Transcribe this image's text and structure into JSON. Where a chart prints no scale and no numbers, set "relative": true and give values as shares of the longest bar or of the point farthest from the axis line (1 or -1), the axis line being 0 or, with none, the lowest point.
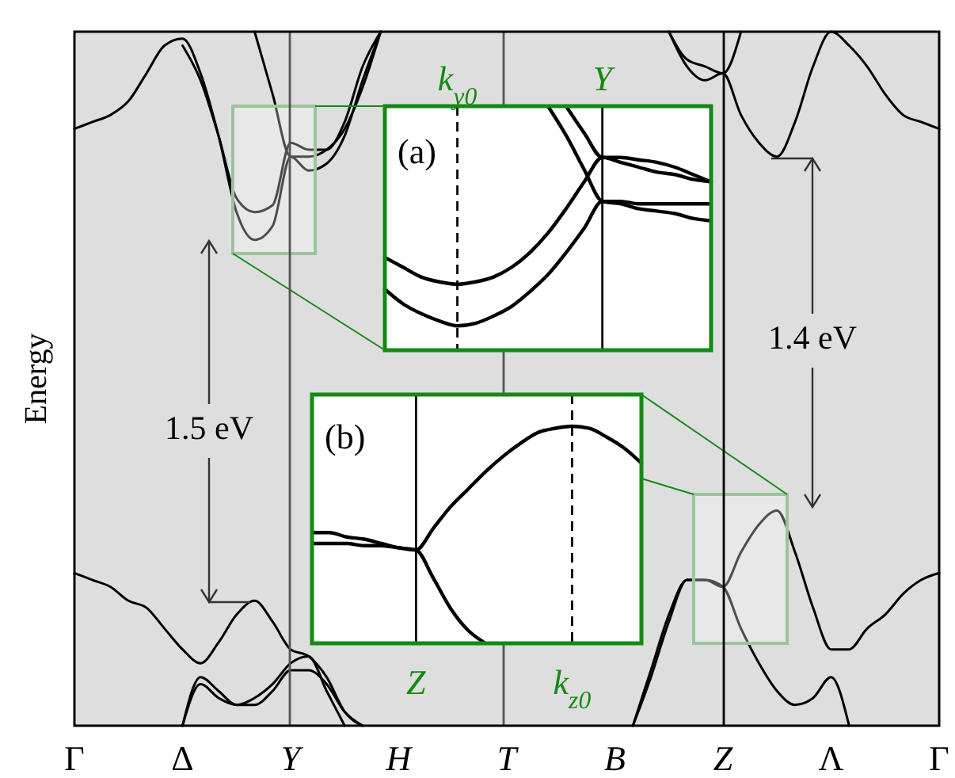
{
  "chart_data": [
    {
      "type": "line",
      "ylabel": "Energy",
      "relative": true,
      "tick_labels": "x",
      "categories": [
        "Γ",
        null,
        null,
        null,
        null,
        null,
        "Δ",
        null,
        null,
        null,
        null,
        null,
        "Y",
        null,
        null,
        null,
        null,
        null,
        "H",
        null,
        null,
        null,
        null,
        null,
        "T",
        null,
        null,
        null,
        null,
        null,
        "B",
        null,
        null,
        null,
        null,
        null,
        "Z",
        null,
        null,
        null,
        null,
        null,
        "Λ",
        null,
        null,
        null,
        null,
        null,
        "Γ"
      ],
      "annotations": [
        "1.5 eV",
        "1.4 eV"
      ],
      "series": [
        {
          "color": "#000000",
          "values": [
            0.86,
            0.87,
            0.88,
            0.9,
            0.94,
            0.98,
            0.99,
            0.94,
            0.85,
            0.74,
            0.7,
            0.72,
            0.82,
            0.8,
            0.81,
            0.85,
            0.93,
            1.0,
            null,
            null,
            null,
            null,
            null,
            null,
            null,
            null,
            null,
            null,
            null,
            null,
            null,
            null,
            null,
            null,
            null,
            null,
            null,
            null,
            null,
            null,
            null,
            null,
            null,
            null,
            null,
            null,
            null,
            null,
            null
          ]
        },
        {
          "color": "#000000",
          "values": [
            null,
            null,
            null,
            null,
            null,
            null,
            0.98,
            0.93,
            0.85,
            0.76,
            0.74,
            0.75,
            0.84,
            0.83,
            0.83,
            0.87,
            0.95,
            1.0,
            null,
            null,
            null,
            null,
            null,
            null,
            null,
            null,
            null,
            null,
            null,
            null,
            null,
            null,
            null,
            null,
            null,
            null,
            null,
            null,
            null,
            null,
            null,
            null,
            null,
            null,
            null,
            null,
            null,
            null,
            null
          ]
        },
        {
          "color": "#000000",
          "values": [
            null,
            null,
            null,
            null,
            null,
            null,
            null,
            null,
            null,
            null,
            1.0,
            0.91,
            0.82,
            0.82,
            0.83,
            0.86,
            0.92,
            1.0,
            null,
            null,
            null,
            null,
            null,
            null,
            null,
            null,
            null,
            null,
            null,
            null,
            null,
            null,
            null,
            null,
            null,
            null,
            null,
            null,
            null,
            null,
            null,
            null,
            null,
            null,
            null,
            null,
            null,
            null,
            null
          ]
        },
        {
          "color": "#000000",
          "values": [
            null,
            null,
            null,
            null,
            null,
            null,
            null,
            null,
            null,
            null,
            null,
            null,
            null,
            null,
            null,
            null,
            null,
            null,
            null,
            null,
            null,
            null,
            null,
            null,
            null,
            null,
            null,
            null,
            null,
            null,
            null,
            null,
            null,
            1.0,
            0.96,
            0.95,
            0.94,
            1.0,
            null,
            null,
            null,
            null,
            null,
            null,
            null,
            null,
            null,
            null,
            null
          ]
        },
        {
          "color": "#000000",
          "values": [
            null,
            null,
            null,
            null,
            null,
            null,
            null,
            null,
            null,
            null,
            null,
            null,
            null,
            null,
            null,
            null,
            null,
            null,
            null,
            null,
            null,
            null,
            null,
            null,
            null,
            null,
            null,
            null,
            null,
            null,
            null,
            null,
            null,
            1.0,
            0.95,
            0.93,
            0.94,
            0.88,
            0.84,
            0.82,
            0.87,
            0.95,
            1.0,
            0.98,
            0.95,
            0.91,
            0.88,
            0.87,
            0.86
          ]
        },
        {
          "color": "#000000",
          "values": [
            0.22,
            0.21,
            0.2,
            0.18,
            0.17,
            0.14,
            0.11,
            0.09,
            0.12,
            0.16,
            0.18,
            0.15,
            0.11,
            0.1,
            0.07,
            0.02,
            0,
            null,
            null,
            null,
            null,
            null,
            null,
            null,
            null,
            null,
            null,
            null,
            null,
            null,
            null,
            null,
            null,
            null,
            null,
            null,
            null,
            null,
            null,
            null,
            null,
            null,
            null,
            null,
            null,
            null,
            null,
            null,
            null
          ]
        },
        {
          "color": "#000000",
          "values": [
            null,
            null,
            null,
            null,
            null,
            null,
            0,
            0.07,
            0.05,
            0.03,
            0.04,
            0.06,
            0.09,
            0.1,
            0.05,
            0,
            null,
            null,
            null,
            null,
            null,
            null,
            null,
            null,
            null,
            null,
            null,
            null,
            null,
            null,
            null,
            null,
            null,
            null,
            null,
            null,
            null,
            null,
            null,
            null,
            null,
            null,
            null,
            null,
            null,
            null,
            null,
            null,
            null
          ]
        },
        {
          "color": "#000000",
          "values": [
            null,
            null,
            null,
            null,
            null,
            null,
            0,
            0.06,
            0.04,
            0.03,
            0.03,
            0.05,
            0.08,
            0.08,
            0.06,
            0.02,
            0,
            null,
            null,
            null,
            null,
            null,
            null,
            null,
            null,
            null,
            null,
            null,
            null,
            null,
            null,
            null,
            null,
            null,
            null,
            null,
            null,
            null,
            null,
            null,
            null,
            null,
            null,
            null,
            null,
            null,
            null,
            null,
            null
          ]
        },
        {
          "color": "#000000",
          "values": [
            null,
            null,
            null,
            null,
            null,
            null,
            null,
            null,
            null,
            null,
            null,
            null,
            null,
            null,
            null,
            null,
            null,
            null,
            null,
            null,
            null,
            null,
            null,
            null,
            null,
            null,
            null,
            null,
            null,
            null,
            null,
            0,
            0.08,
            0.16,
            0.21,
            0.21,
            0.2,
            0.25,
            0.29,
            0.31,
            0.25,
            0.17,
            0.11,
            0.11,
            0.14,
            0.16,
            0.19,
            0.21,
            0.22
          ]
        },
        {
          "color": "#000000",
          "values": [
            null,
            null,
            null,
            null,
            null,
            null,
            null,
            null,
            null,
            null,
            null,
            null,
            null,
            null,
            null,
            null,
            null,
            null,
            null,
            null,
            null,
            null,
            null,
            null,
            null,
            null,
            null,
            null,
            null,
            null,
            null,
            0,
            0.07,
            0.15,
            0.21,
            0.21,
            0.2,
            0.14,
            0.09,
            0.05,
            0.03,
            0.04,
            0.07,
            0,
            null,
            null,
            null,
            null,
            null
          ]
        }
      ]
    },
    {
      "type": "line",
      "title": "(a)",
      "relative": true,
      "tick_labels": "x",
      "categories": [
        null,
        null,
        null,
        null,
        "k$_{y0}$",
        null,
        null,
        null,
        null,
        null,
        null,
        null,
        "Y",
        null,
        null,
        null,
        null,
        null,
        null
      ],
      "ref_lines": [
        {
          "axis": "x",
          "value": "k$_{y0}$",
          "line_style": "dashed",
          "color": "#000000"
        },
        {
          "axis": "x",
          "value": "Y",
          "color": "#000000"
        }
      ],
      "series": [
        {
          "color": "#000000",
          "values": [
            0.38,
            0.34,
            0.3,
            0.28,
            0.27,
            0.28,
            0.3,
            0.34,
            0.4,
            0.48,
            0.58,
            0.69,
            0.79,
            0.77,
            0.75,
            0.73,
            0.72,
            0.7,
            0.69
          ]
        },
        {
          "color": "#000000",
          "values": [
            0.25,
            0.19,
            0.15,
            0.12,
            0.1,
            0.11,
            0.14,
            0.18,
            0.24,
            0.31,
            0.4,
            0.5,
            0.61,
            0.61,
            0.6,
            0.6,
            0.6,
            0.6,
            0.6
          ]
        },
        {
          "color": "#000000",
          "values": [
            null,
            null,
            null,
            null,
            null,
            null,
            null,
            null,
            null,
            1.0,
            0.88,
            0.74,
            0.61,
            0.6,
            0.58,
            0.57,
            0.56,
            0.54,
            0.53
          ]
        },
        {
          "color": "#000000",
          "values": [
            null,
            null,
            null,
            null,
            null,
            null,
            null,
            null,
            null,
            null,
            1.0,
            0.89,
            0.79,
            0.79,
            0.78,
            0.77,
            0.75,
            0.72,
            0.69
          ]
        }
      ]
    },
    {
      "type": "line",
      "title": "(b)",
      "relative": true,
      "tick_labels": "x",
      "categories": [
        null,
        null,
        null,
        null,
        null,
        null,
        "Z",
        null,
        null,
        null,
        null,
        null,
        null,
        null,
        null,
        "k$_{z0}$",
        null,
        null,
        null,
        null
      ],
      "ref_lines": [
        {
          "axis": "x",
          "value": "Z",
          "color": "#000000"
        },
        {
          "axis": "x",
          "value": "k$_{z0}$",
          "line_style": "dashed",
          "color": "#000000"
        }
      ],
      "series": [
        {
          "color": "#000000",
          "values": [
            0.51,
            0.51,
            0.49,
            0.48,
            0.46,
            0.44,
            0.43,
            0.53,
            0.63,
            0.71,
            0.79,
            0.86,
            0.92,
            0.97,
            0.99,
            1.0,
            0.99,
            0.95,
            0.9,
            0.83
          ]
        },
        {
          "color": "#000000",
          "values": [
            0.46,
            0.46,
            0.46,
            0.45,
            0.45,
            0.44,
            0.43,
            0.3,
            0.16,
            0.06,
            0,
            null,
            null,
            null,
            null,
            null,
            null,
            null,
            null,
            null
          ]
        }
      ]
    }
  ]
}
